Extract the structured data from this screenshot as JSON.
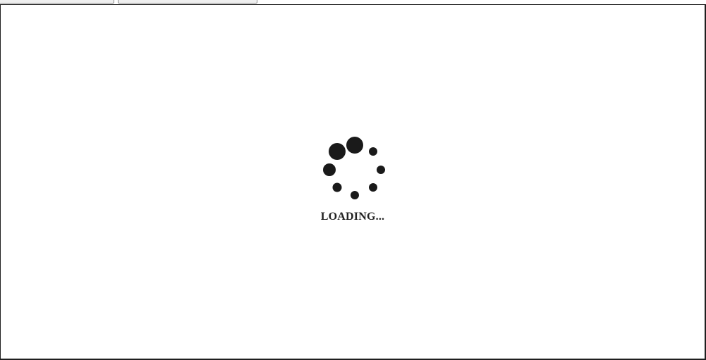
{
  "tabs": [
    {
      "label": ""
    },
    {
      "label": ""
    }
  ],
  "loader": {
    "icon": "loading-spinner-icon",
    "text": "LOADING..."
  }
}
